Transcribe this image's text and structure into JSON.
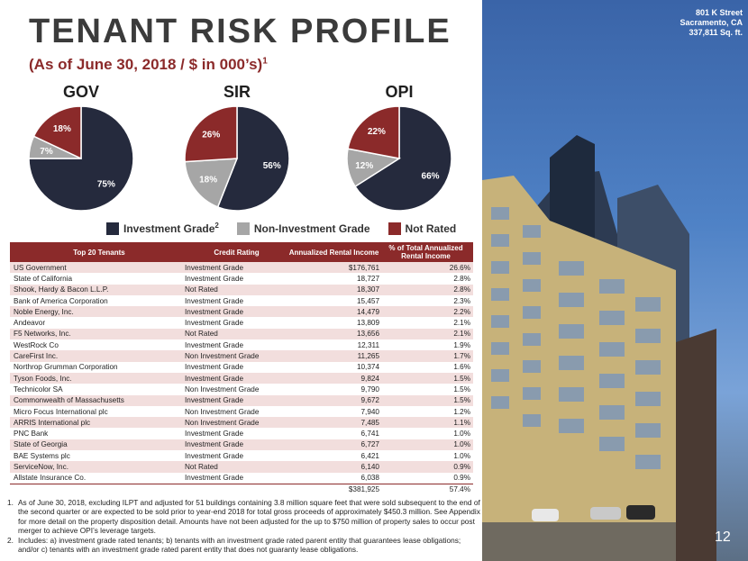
{
  "header": {
    "title": "TENANT RISK PROFILE",
    "subtitle": "(As of June 30, 2018 / $ in 000’s)",
    "subtitle_sup": "1"
  },
  "colors": {
    "investment_grade": "#252a3d",
    "non_investment_grade": "#a6a6a6",
    "not_rated": "#8b2a2a",
    "accent": "#8b2a2a"
  },
  "chart_data": [
    {
      "type": "pie",
      "title": "GOV",
      "slices": [
        {
          "name": "Investment Grade",
          "value": 75,
          "label": "75%"
        },
        {
          "name": "Non-Investment Grade",
          "value": 7,
          "label": "7%"
        },
        {
          "name": "Not Rated",
          "value": 18,
          "label": "18%"
        }
      ]
    },
    {
      "type": "pie",
      "title": "SIR",
      "slices": [
        {
          "name": "Investment Grade",
          "value": 56,
          "label": "56%"
        },
        {
          "name": "Non-Investment Grade",
          "value": 18,
          "label": "18%"
        },
        {
          "name": "Not Rated",
          "value": 26,
          "label": "26%"
        }
      ]
    },
    {
      "type": "pie",
      "title": "OPI",
      "slices": [
        {
          "name": "Investment Grade",
          "value": 66,
          "label": "66%"
        },
        {
          "name": "Non-Investment Grade",
          "value": 12,
          "label": "12%"
        },
        {
          "name": "Not Rated",
          "value": 22,
          "label": "22%"
        }
      ]
    }
  ],
  "legend": {
    "investment_grade": "Investment Grade",
    "investment_grade_sup": "2",
    "non_investment_grade": "Non-Investment Grade",
    "not_rated": "Not Rated"
  },
  "table": {
    "headers": [
      "Top 20 Tenants",
      "Credit Rating",
      "Annualized Rental Income",
      "% of Total Annualized Rental Income"
    ],
    "rows": [
      [
        "US Government",
        "Investment Grade",
        "$176,761",
        "26.6%"
      ],
      [
        "State of California",
        "Investment Grade",
        "18,727",
        "2.8%"
      ],
      [
        "Shook, Hardy & Bacon L.L.P.",
        "Not Rated",
        "18,307",
        "2.8%"
      ],
      [
        "Bank of America Corporation",
        "Investment Grade",
        "15,457",
        "2.3%"
      ],
      [
        "Noble Energy, Inc.",
        "Investment Grade",
        "14,479",
        "2.2%"
      ],
      [
        "Andeavor",
        "Investment Grade",
        "13,809",
        "2.1%"
      ],
      [
        "F5 Networks, Inc.",
        "Not Rated",
        "13,656",
        "2.1%"
      ],
      [
        "WestRock Co",
        "Investment Grade",
        "12,311",
        "1.9%"
      ],
      [
        "CareFirst Inc.",
        "Non Investment Grade",
        "11,265",
        "1.7%"
      ],
      [
        "Northrop Grumman Corporation",
        "Investment Grade",
        "10,374",
        "1.6%"
      ],
      [
        "Tyson Foods, Inc.",
        "Investment Grade",
        "9,824",
        "1.5%"
      ],
      [
        "Technicolor SA",
        "Non Investment Grade",
        "9,790",
        "1.5%"
      ],
      [
        "Commonwealth of Massachusetts",
        "Investment Grade",
        "9,672",
        "1.5%"
      ],
      [
        "Micro Focus International plc",
        "Non Investment Grade",
        "7,940",
        "1.2%"
      ],
      [
        "ARRIS International plc",
        "Non Investment Grade",
        "7,485",
        "1.1%"
      ],
      [
        "PNC Bank",
        "Investment Grade",
        "6,741",
        "1.0%"
      ],
      [
        "State of Georgia",
        "Investment Grade",
        "6,727",
        "1.0%"
      ],
      [
        "BAE Systems plc",
        "Investment Grade",
        "6,421",
        "1.0%"
      ],
      [
        "ServiceNow, Inc.",
        "Not Rated",
        "6,140",
        "0.9%"
      ],
      [
        "Allstate Insurance Co.",
        "Investment Grade",
        "6,038",
        "0.9%"
      ]
    ],
    "total": [
      "",
      "",
      "$381,925",
      "57.4%"
    ]
  },
  "footnotes": [
    {
      "num": "1.",
      "text": "As of June 30, 2018, excluding ILPT and adjusted for 51 buildings containing 3.8 million square feet that were sold subsequent to the end of the second quarter or are expected to be sold prior to year-end 2018 for total gross proceeds of approximately $450.3 million. See Appendix for more detail on the property disposition detail. Amounts have not been adjusted for the up to $750 million of property sales to occur post merger to achieve OPI’s leverage targets."
    },
    {
      "num": "2.",
      "text": "Includes: a) investment grade rated tenants; b) tenants with an investment grade rated parent entity that guarantees lease obligations; and/or c) tenants with an investment grade rated parent entity that does not guaranty lease obligations."
    }
  ],
  "photo": {
    "caption_line1": "801 K Street",
    "caption_line2": "Sacramento, CA",
    "caption_line3": "337,811 Sq. ft.",
    "page_number": "12"
  }
}
